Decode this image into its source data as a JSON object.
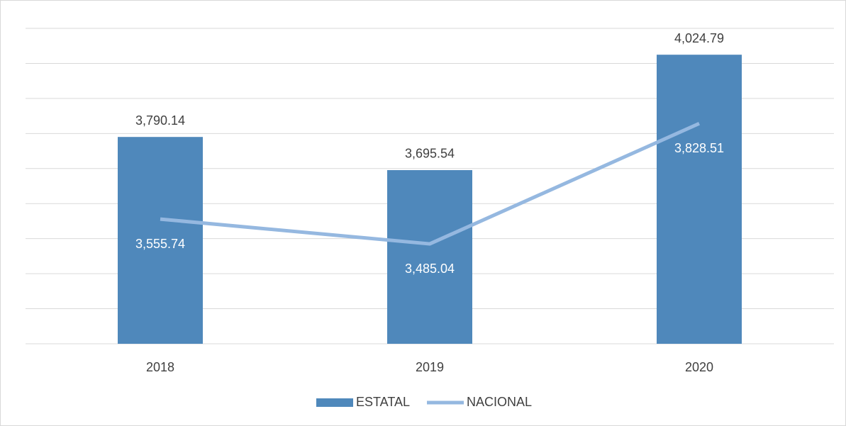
{
  "chart_data": {
    "type": "bar",
    "categories": [
      "2018",
      "2019",
      "2020"
    ],
    "series": [
      {
        "name": "ESTATAL",
        "type": "bar",
        "color": "#4f88bb",
        "values": [
          3790.14,
          3695.54,
          4024.79
        ],
        "value_labels": [
          "3,790.14",
          "3,695.54",
          "4,024.79"
        ]
      },
      {
        "name": "NACIONAL",
        "type": "line",
        "color": "#95b8e0",
        "values": [
          3555.74,
          3485.04,
          3828.51
        ],
        "value_labels": [
          "3,555.74",
          "3,485.04",
          "3,828.51"
        ]
      }
    ],
    "ylim": [
      3200,
      4100
    ],
    "yticks": [
      3200,
      3300,
      3400,
      3500,
      3600,
      3700,
      3800,
      3900,
      4000,
      4100
    ],
    "grid": true,
    "legend": "bottom"
  }
}
